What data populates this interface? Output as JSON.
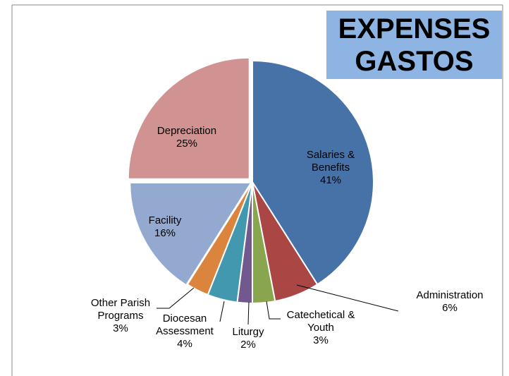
{
  "chart_data": {
    "type": "pie",
    "title": "EXPENSES",
    "subtitle": "GASTOS",
    "categories": [
      "Salaries & Benefits",
      "Administration",
      "Catechetical & Youth",
      "Liturgy",
      "Diocesan Assessment",
      "Other Parish Programs",
      "Facility",
      "Depreciation"
    ],
    "values": [
      41,
      6,
      3,
      2,
      4,
      3,
      16,
      25
    ],
    "value_labels": [
      "41%",
      "6%",
      "3%",
      "2%",
      "4%",
      "3%",
      "16%",
      "25%"
    ],
    "colors": [
      "#4672a8",
      "#aa4744",
      "#89a54e",
      "#71588f",
      "#4298af",
      "#db843d",
      "#93a9cf",
      "#d19392"
    ]
  }
}
